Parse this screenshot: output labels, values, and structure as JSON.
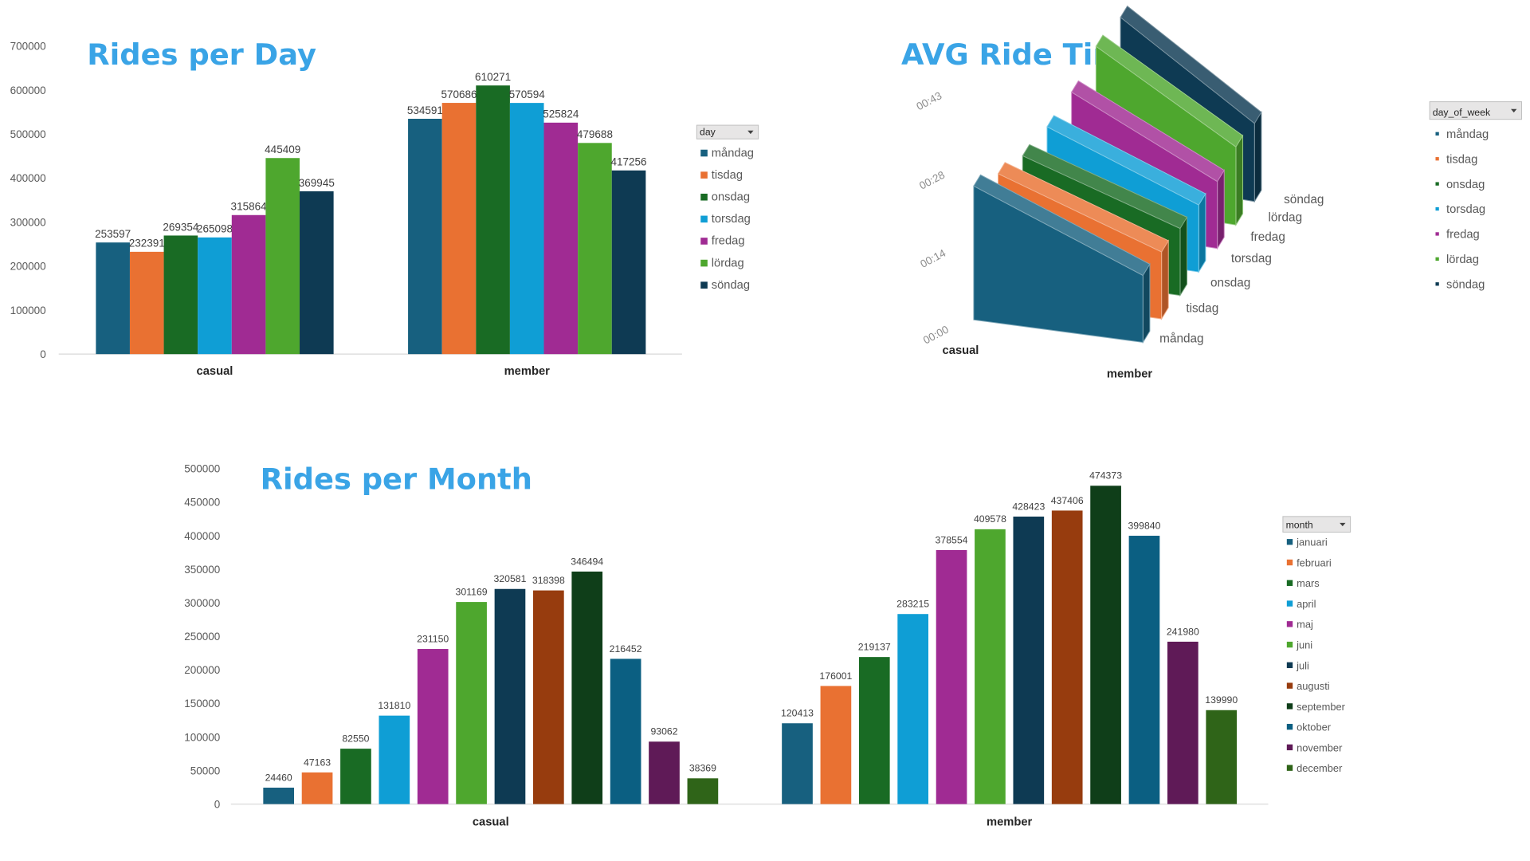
{
  "chart_data": [
    {
      "type": "bar",
      "title": "Rides per Day",
      "categories": [
        "casual",
        "member"
      ],
      "legend_title": "day",
      "legend_position": "right",
      "ylim": [
        0,
        700000
      ],
      "yticks": [
        "0",
        "100000",
        "200000",
        "300000",
        "400000",
        "500000",
        "600000",
        "700000"
      ],
      "grid": false,
      "series": [
        {
          "name": "måndag",
          "color": "#17607f",
          "values": [
            253597,
            534591
          ]
        },
        {
          "name": "tisdag",
          "color": "#e97132",
          "values": [
            232391,
            570686
          ]
        },
        {
          "name": "onsdag",
          "color": "#196b24",
          "values": [
            269354,
            610271
          ]
        },
        {
          "name": "torsdag",
          "color": "#0f9ed5",
          "values": [
            265098,
            570594
          ]
        },
        {
          "name": "fredag",
          "color": "#a02b93",
          "values": [
            315864,
            525824
          ]
        },
        {
          "name": "lördag",
          "color": "#4ea72e",
          "values": [
            445409,
            479688
          ]
        },
        {
          "name": "söndag",
          "color": "#0e3a53",
          "values": [
            369945,
            417256
          ]
        }
      ]
    },
    {
      "type": "bar",
      "subtype": "3d",
      "title": "AVG Ride Time",
      "categories": [
        "casual",
        "member"
      ],
      "legend_title": "day_of_week",
      "legend_position": "right",
      "yticks": [
        "00:00",
        "00:14",
        "00:28",
        "00:43"
      ],
      "series_axis": [
        "måndag",
        "tisdag",
        "onsdag",
        "torsdag",
        "fredag",
        "lördag",
        "söndag"
      ],
      "series": [
        {
          "name": "måndag",
          "color": "#17607f",
          "values": [
            "00:24",
            "00:12"
          ]
        },
        {
          "name": "tisdag",
          "color": "#e97132",
          "values": [
            "00:22",
            "00:12"
          ]
        },
        {
          "name": "onsdag",
          "color": "#196b24",
          "values": [
            "00:21",
            "00:12"
          ]
        },
        {
          "name": "torsdag",
          "color": "#0f9ed5",
          "values": [
            "00:22",
            "00:12"
          ]
        },
        {
          "name": "fredag",
          "color": "#a02b93",
          "values": [
            "00:24",
            "00:12"
          ]
        },
        {
          "name": "lördag",
          "color": "#4ea72e",
          "values": [
            "00:28",
            "00:14"
          ]
        },
        {
          "name": "söndag",
          "color": "#0e3a53",
          "values": [
            "00:29",
            "00:14"
          ]
        }
      ]
    },
    {
      "type": "bar",
      "title": "Rides per Month",
      "categories": [
        "casual",
        "member"
      ],
      "legend_title": "month",
      "legend_position": "right",
      "ylim": [
        0,
        500000
      ],
      "yticks": [
        "0",
        "50000",
        "100000",
        "150000",
        "200000",
        "250000",
        "300000",
        "350000",
        "400000",
        "450000",
        "500000"
      ],
      "grid": false,
      "series": [
        {
          "name": "januari",
          "color": "#17607f",
          "values": [
            24460,
            120413
          ]
        },
        {
          "name": "februari",
          "color": "#e97132",
          "values": [
            47163,
            176001
          ]
        },
        {
          "name": "mars",
          "color": "#196b24",
          "values": [
            82550,
            219137
          ]
        },
        {
          "name": "april",
          "color": "#0f9ed5",
          "values": [
            131810,
            283215
          ]
        },
        {
          "name": "maj",
          "color": "#a02b93",
          "values": [
            231150,
            378554
          ]
        },
        {
          "name": "juni",
          "color": "#4ea72e",
          "values": [
            301169,
            409578
          ]
        },
        {
          "name": "juli",
          "color": "#0e3a53",
          "values": [
            320581,
            428423
          ]
        },
        {
          "name": "augusti",
          "color": "#973c0e",
          "values": [
            318398,
            437406
          ]
        },
        {
          "name": "september",
          "color": "#0f3e19",
          "values": [
            346494,
            474373
          ]
        },
        {
          "name": "oktober",
          "color": "#0b5f82",
          "values": [
            216452,
            399840
          ]
        },
        {
          "name": "november",
          "color": "#5f1a57",
          "values": [
            93062,
            241980
          ]
        },
        {
          "name": "december",
          "color": "#2f6418",
          "values": [
            38369,
            139990
          ]
        }
      ]
    }
  ]
}
